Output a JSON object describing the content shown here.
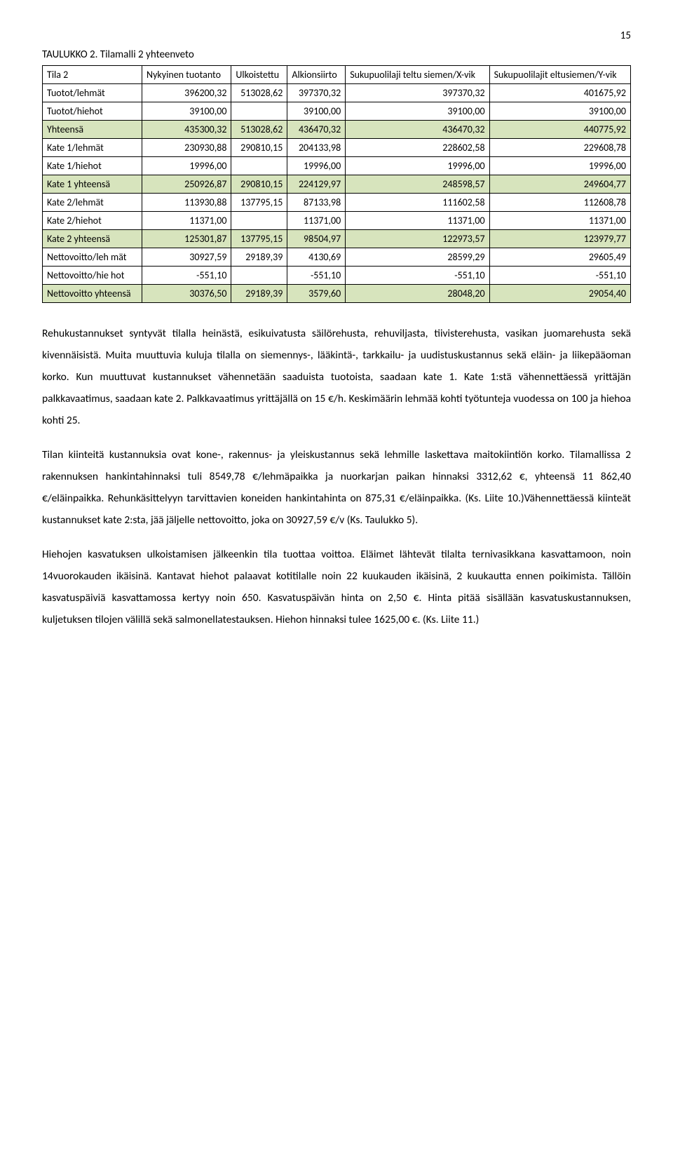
{
  "pageNumber": "15",
  "tableTitle": "TAULUKKO 2. Tilamalli 2 yhteenveto",
  "columns": [
    "Tila 2",
    "Nykyinen tuotanto",
    "Ulkoistettu",
    "Alkionsiirto",
    "Sukupuolilaji teltu siemen/X-vik",
    "Sukupuolilajit eltusiemen/Y-vik"
  ],
  "rows": [
    {
      "hl": false,
      "cells": [
        "Tuotot/lehmät",
        "396200,32",
        "513028,62",
        "397370,32",
        "397370,32",
        "401675,92"
      ]
    },
    {
      "hl": false,
      "cells": [
        "Tuotot/hiehot",
        "39100,00",
        "",
        "39100,00",
        "39100,00",
        "39100,00"
      ]
    },
    {
      "hl": true,
      "cells": [
        "Yhteensä",
        "435300,32",
        "513028,62",
        "436470,32",
        "436470,32",
        "440775,92"
      ]
    },
    {
      "hl": false,
      "cells": [
        "Kate 1/lehmät",
        "230930,88",
        "290810,15",
        "204133,98",
        "228602,58",
        "229608,78"
      ]
    },
    {
      "hl": false,
      "cells": [
        "Kate 1/hiehot",
        "19996,00",
        "",
        "19996,00",
        "19996,00",
        "19996,00"
      ]
    },
    {
      "hl": true,
      "cells": [
        "Kate 1 yhteensä",
        "250926,87",
        "290810,15",
        "224129,97",
        "248598,57",
        "249604,77"
      ]
    },
    {
      "hl": false,
      "cells": [
        "Kate 2/lehmät",
        "113930,88",
        "137795,15",
        "87133,98",
        "111602,58",
        "112608,78"
      ]
    },
    {
      "hl": false,
      "cells": [
        "Kate 2/hiehot",
        "11371,00",
        "",
        "11371,00",
        "11371,00",
        "11371,00"
      ]
    },
    {
      "hl": true,
      "cells": [
        "Kate 2 yhteensä",
        "125301,87",
        "137795,15",
        "98504,97",
        "122973,57",
        "123979,77"
      ]
    },
    {
      "hl": false,
      "cells": [
        "Nettovoitto/leh mät",
        "30927,59",
        "29189,39",
        "4130,69",
        "28599,29",
        "29605,49"
      ]
    },
    {
      "hl": false,
      "cells": [
        "Nettovoitto/hie hot",
        "-551,10",
        "",
        "-551,10",
        "-551,10",
        "-551,10"
      ]
    },
    {
      "hl": true,
      "cells": [
        "Nettovoitto yhteensä",
        "30376,50",
        "29189,39",
        "3579,60",
        "28048,20",
        "29054,40"
      ]
    }
  ],
  "tableStyle": {
    "highlightColor": "#d7e4bd",
    "borderColor": "#000000",
    "bgColor": "#ffffff",
    "fontSize": 14
  },
  "paragraphs": [
    "Rehukustannukset syntyvät tilalla heinästä, esikuivatusta säilörehusta, rehuviljasta, tiivisterehusta, vasikan juomarehusta sekä kivennäisistä. Muita muuttuvia kuluja tilalla on siemennys-, lääkintä-, tarkkailu- ja uudistuskustannus sekä eläin- ja liikepääoman korko. Kun muuttuvat kustannukset vähennetään saaduista tuotoista, saadaan kate 1. Kate 1:stä vähennettäessä yrittäjän palkkavaatimus, saadaan kate 2. Palkkavaatimus yrittäjällä on 15 €/h. Keskimäärin lehmää kohti työtunteja vuodessa on 100 ja hiehoa kohti 25.",
    "Tilan kiinteitä kustannuksia ovat kone-, rakennus- ja yleiskustannus sekä lehmille laskettava maitokiintiön korko. Tilamallissa 2 rakennuksen hankintahinnaksi tuli 8549,78 €/lehmäpaikka ja nuorkarjan paikan hinnaksi 3312,62 €, yhteensä 11 862,40 €/eläinpaikka. Rehunkäsittelyyn tarvittavien koneiden hankintahinta on 875,31 €/eläinpaikka. (Ks. Liite 10.)Vähennettäessä kiinteät kustannukset kate 2:sta, jää jäljelle nettovoitto, joka on 30927,59 €/v (Ks. Taulukko 5).",
    "Hiehojen kasvatuksen ulkoistamisen jälkeenkin tila tuottaa voittoa. Eläimet lähtevät tilalta ternivasikkana kasvattamoon, noin 14vuorokauden ikäisinä. Kantavat hiehot palaavat kotitilalle noin 22 kuukauden ikäisinä, 2 kuukautta ennen poikimista. Tällöin kasvatuspäiviä kasvattamossa kertyy noin 650. Kasvatuspäivän hinta on 2,50 €. Hinta pitää sisällään kasvatuskustannuksen, kuljetuksen tilojen välillä sekä salmonellatestauksen. Hiehon hinnaksi tulee 1625,00 €. (Ks. Liite 11.)"
  ]
}
